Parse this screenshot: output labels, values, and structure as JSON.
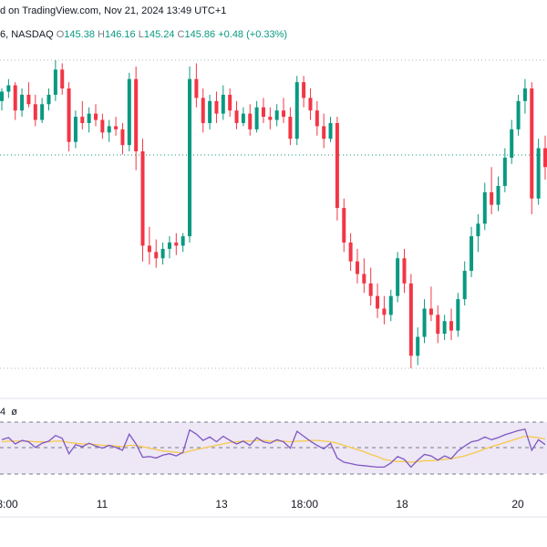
{
  "header": {
    "published_text": "d on TradingView.com, Nov 21, 2024 13:49 UTC+1",
    "symbol_suffix": "6, NASDAQ",
    "o_label": "O",
    "o_value": "145.38",
    "h_label": "H",
    "h_value": "146.16",
    "l_label": "L",
    "l_value": "145.24",
    "c_label": "C",
    "c_value": "145.86",
    "change": "+0.48 (+0.33%)"
  },
  "rsi_pane": {
    "label_a": "4",
    "label_b": "ø"
  },
  "colors": {
    "up": "#089981",
    "down": "#f23645",
    "rsi_line": "#7e57c2",
    "rsi_ma": "#f7c948",
    "rsi_band": "#ede7f6",
    "levels": "#787b86"
  },
  "chart_data": [
    {
      "type": "candlestick",
      "x_tick_labels": [
        "8:00",
        "11",
        "13",
        "18:00",
        "18",
        "20"
      ],
      "reference_lines": [
        "dotted upper",
        "dotted middle",
        "dotted lower"
      ],
      "grid": false,
      "series": [
        {
          "values": [
            [
              145.2,
              145.6,
              144.9,
              145.5
            ],
            [
              145.5,
              145.9,
              145.3,
              145.7
            ],
            [
              145.7,
              145.8,
              144.6,
              144.9
            ],
            [
              144.9,
              145.6,
              144.7,
              145.4
            ],
            [
              145.4,
              145.8,
              145.0,
              145.1
            ],
            [
              145.1,
              145.4,
              144.4,
              144.6
            ],
            [
              144.6,
              145.3,
              144.5,
              145.1
            ],
            [
              145.1,
              145.6,
              144.9,
              145.4
            ],
            [
              145.4,
              146.5,
              145.2,
              146.2
            ],
            [
              146.2,
              146.4,
              145.4,
              145.6
            ],
            [
              145.6,
              145.8,
              143.6,
              143.9
            ],
            [
              143.9,
              144.9,
              143.7,
              144.7
            ],
            [
              144.7,
              145.2,
              144.3,
              144.5
            ],
            [
              144.5,
              145.0,
              144.2,
              144.8
            ],
            [
              144.8,
              145.1,
              144.4,
              144.6
            ],
            [
              144.6,
              144.8,
              144.0,
              144.2
            ],
            [
              144.2,
              144.6,
              143.9,
              144.4
            ],
            [
              144.4,
              144.7,
              144.1,
              144.3
            ],
            [
              144.3,
              144.5,
              143.5,
              143.8
            ],
            [
              143.8,
              146.1,
              143.6,
              145.9
            ],
            [
              145.9,
              146.3,
              143.0,
              143.6
            ],
            [
              143.6,
              144.0,
              140.1,
              140.6
            ],
            [
              140.6,
              141.2,
              140.0,
              140.4
            ],
            [
              140.4,
              140.8,
              139.9,
              140.2
            ],
            [
              140.2,
              140.7,
              140.0,
              140.5
            ],
            [
              140.5,
              140.9,
              140.2,
              140.7
            ],
            [
              140.7,
              141.0,
              140.3,
              140.6
            ],
            [
              140.6,
              141.0,
              140.4,
              140.9
            ],
            [
              140.9,
              146.3,
              140.7,
              145.9
            ],
            [
              145.9,
              146.4,
              145.0,
              145.3
            ],
            [
              145.3,
              145.6,
              144.2,
              144.5
            ],
            [
              144.5,
              145.4,
              144.3,
              145.2
            ],
            [
              145.2,
              145.5,
              144.5,
              144.8
            ],
            [
              144.8,
              145.7,
              144.6,
              145.4
            ],
            [
              145.4,
              145.6,
              144.7,
              144.9
            ],
            [
              144.9,
              145.2,
              144.3,
              144.5
            ],
            [
              144.5,
              145.0,
              144.4,
              144.8
            ],
            [
              144.8,
              145.1,
              144.1,
              144.3
            ],
            [
              144.3,
              145.2,
              144.2,
              145.0
            ],
            [
              145.0,
              145.3,
              144.5,
              144.7
            ],
            [
              144.7,
              145.0,
              144.3,
              144.6
            ],
            [
              144.6,
              145.1,
              144.4,
              144.9
            ],
            [
              144.9,
              145.3,
              144.5,
              144.7
            ],
            [
              144.7,
              145.0,
              143.8,
              144.0
            ],
            [
              144.0,
              146.0,
              143.8,
              145.8
            ],
            [
              145.8,
              146.0,
              145.0,
              145.3
            ],
            [
              145.3,
              145.6,
              144.6,
              144.9
            ],
            [
              144.9,
              145.2,
              144.1,
              144.4
            ],
            [
              144.4,
              144.8,
              143.7,
              144.0
            ],
            [
              144.0,
              144.7,
              143.9,
              144.5
            ],
            [
              144.5,
              144.7,
              141.4,
              141.8
            ],
            [
              141.8,
              142.1,
              140.4,
              140.7
            ],
            [
              140.7,
              141.0,
              139.8,
              140.1
            ],
            [
              140.1,
              140.5,
              139.4,
              139.7
            ],
            [
              139.7,
              140.2,
              139.1,
              139.4
            ],
            [
              139.4,
              139.9,
              138.7,
              139.0
            ],
            [
              139.0,
              139.4,
              138.3,
              138.6
            ],
            [
              138.6,
              139.0,
              138.1,
              138.4
            ],
            [
              138.4,
              139.2,
              138.2,
              139.0
            ],
            [
              139.0,
              140.4,
              138.8,
              140.2
            ],
            [
              140.2,
              140.5,
              139.1,
              139.4
            ],
            [
              139.4,
              139.7,
              136.7,
              137.1
            ],
            [
              137.1,
              138.0,
              136.8,
              137.7
            ],
            [
              137.7,
              138.9,
              137.5,
              138.6
            ],
            [
              138.6,
              139.3,
              138.2,
              138.4
            ],
            [
              138.4,
              138.7,
              137.5,
              137.8
            ],
            [
              137.8,
              138.4,
              137.6,
              138.2
            ],
            [
              138.2,
              138.6,
              137.6,
              137.9
            ],
            [
              137.9,
              139.1,
              137.7,
              138.9
            ],
            [
              138.9,
              140.1,
              138.7,
              139.8
            ],
            [
              139.8,
              141.2,
              139.6,
              140.9
            ],
            [
              140.9,
              141.6,
              140.4,
              141.3
            ],
            [
              141.3,
              142.6,
              141.1,
              142.3
            ],
            [
              142.3,
              143.1,
              141.6,
              141.9
            ],
            [
              141.9,
              142.8,
              141.7,
              142.5
            ],
            [
              142.5,
              143.7,
              142.3,
              143.4
            ],
            [
              143.4,
              144.6,
              143.2,
              144.3
            ],
            [
              144.3,
              145.4,
              144.1,
              145.2
            ],
            [
              145.2,
              145.9,
              144.8,
              145.6
            ],
            [
              145.6,
              145.8,
              141.6,
              142.1
            ],
            [
              142.1,
              144.0,
              141.9,
              143.7
            ],
            [
              143.7,
              144.1,
              142.7,
              143.1
            ]
          ]
        }
      ]
    },
    {
      "type": "line",
      "series": [
        {
          "values": [
            58,
            61,
            52,
            57,
            55,
            47,
            53,
            56,
            64,
            60,
            38,
            51,
            48,
            53,
            49,
            46,
            50,
            47,
            43,
            66,
            52,
            33,
            34,
            32,
            36,
            38,
            35,
            40,
            72,
            66,
            57,
            62,
            55,
            63,
            57,
            52,
            56,
            50,
            61,
            55,
            53,
            58,
            55,
            46,
            70,
            63,
            56,
            50,
            45,
            53,
            32,
            26,
            24,
            22,
            21,
            20,
            19,
            19,
            25,
            34,
            30,
            19,
            29,
            37,
            35,
            29,
            35,
            31,
            42,
            49,
            55,
            57,
            62,
            58,
            61,
            65,
            68,
            71,
            73,
            43,
            58,
            51
          ]
        },
        {
          "values": [
            55,
            56,
            56,
            56,
            56,
            55,
            55,
            55,
            56,
            56,
            54,
            53,
            52,
            52,
            51,
            50,
            50,
            49,
            48,
            50,
            50,
            48,
            46,
            44,
            42,
            41,
            40,
            39,
            42,
            44,
            46,
            48,
            50,
            52,
            54,
            55,
            56,
            56,
            57,
            57,
            56,
            56,
            56,
            55,
            56,
            56,
            57,
            57,
            56,
            55,
            53,
            50,
            47,
            44,
            41,
            37,
            34,
            30,
            28,
            27,
            27,
            26,
            27,
            28,
            28,
            29,
            30,
            31,
            33,
            35,
            38,
            41,
            45,
            48,
            51,
            54,
            57,
            60,
            63,
            62,
            61,
            59
          ]
        }
      ]
    }
  ]
}
